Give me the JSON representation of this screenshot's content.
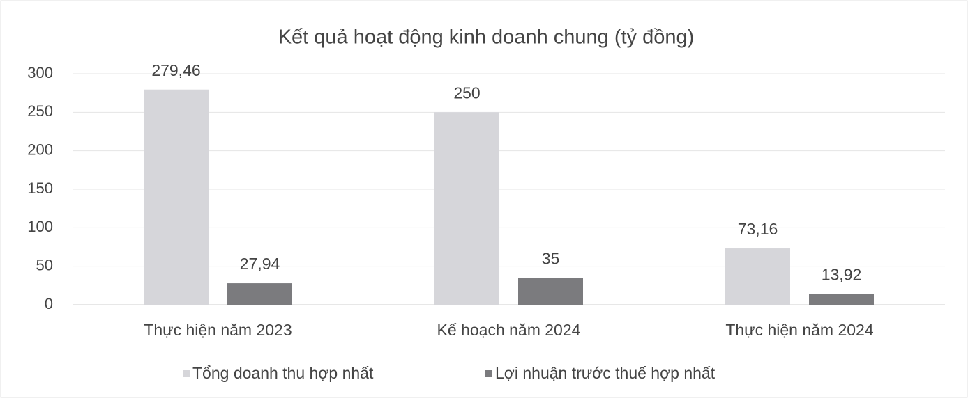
{
  "chart_data": {
    "type": "bar",
    "title": "Kết quả hoạt động kinh doanh chung (tỷ đồng)",
    "categories": [
      "Thực hiện năm 2023",
      "Kế hoạch năm 2024",
      "Thực hiện năm 2024"
    ],
    "series": [
      {
        "name": "Tổng doanh thu hợp nhất",
        "color": "#d6d6da",
        "values": [
          279.46,
          250,
          73.16
        ],
        "value_labels": [
          "279,46",
          "250",
          "73,16"
        ]
      },
      {
        "name": "Lợi nhuận trước thuế hợp nhất",
        "color": "#7b7b7e",
        "values": [
          27.94,
          35,
          13.92
        ],
        "value_labels": [
          "27,94",
          "35",
          "13,92"
        ]
      }
    ],
    "ylim": [
      0,
      300
    ],
    "yticks": [
      0,
      50,
      100,
      150,
      200,
      250,
      300
    ],
    "grid": true,
    "legend": "bottom"
  }
}
